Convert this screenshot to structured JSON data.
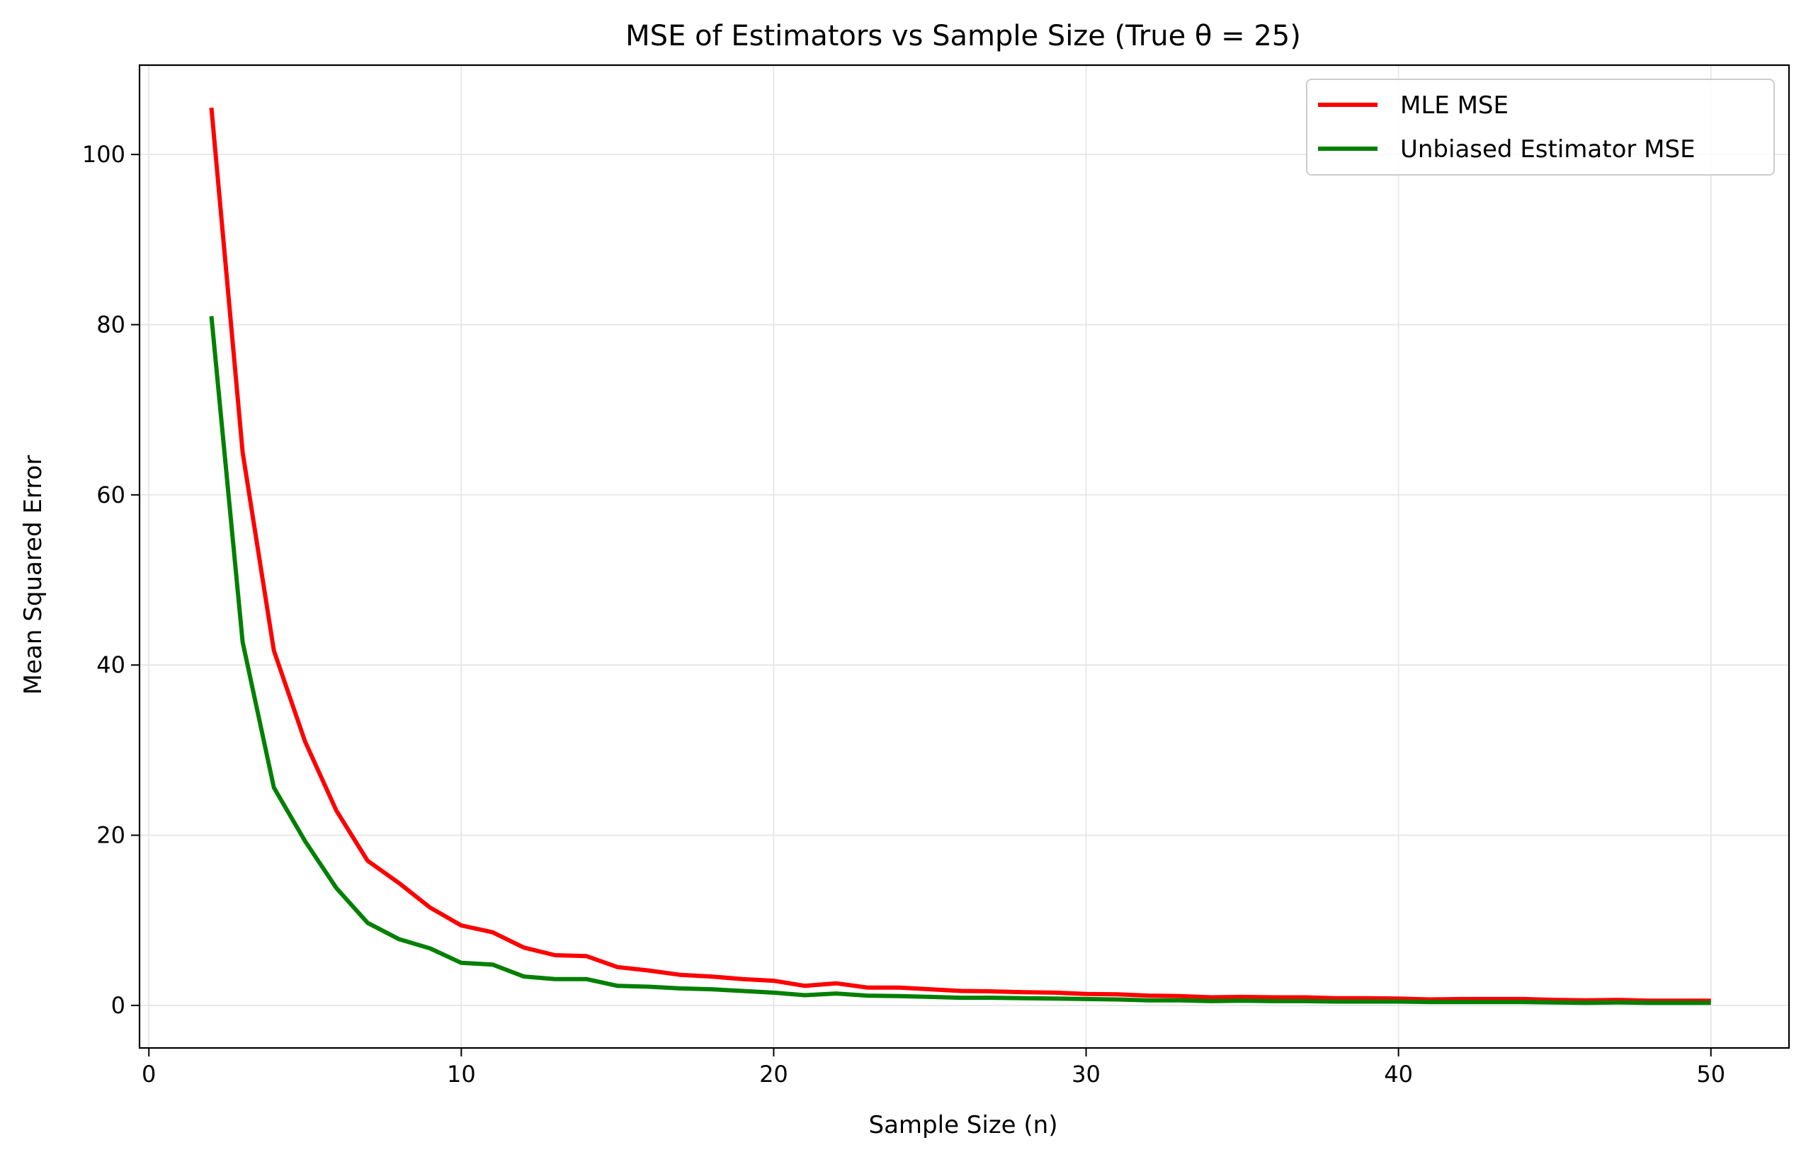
{
  "chart_data": {
    "type": "line",
    "title": "MSE of Estimators vs Sample Size (True θ = 25)",
    "xlabel": "Sample Size (n)",
    "ylabel": "Mean Squared Error",
    "xlim": [
      -0.3,
      52.5
    ],
    "ylim": [
      -5,
      110.5
    ],
    "xticks": [
      0,
      10,
      20,
      30,
      40,
      50
    ],
    "yticks": [
      0,
      20,
      40,
      60,
      80,
      100
    ],
    "grid": true,
    "legend_position": "top-right",
    "x": [
      2,
      3,
      4,
      5,
      6,
      7,
      8,
      9,
      10,
      11,
      12,
      13,
      14,
      15,
      16,
      17,
      18,
      19,
      20,
      21,
      22,
      23,
      24,
      25,
      26,
      27,
      28,
      29,
      30,
      31,
      32,
      33,
      34,
      35,
      36,
      37,
      38,
      39,
      40,
      41,
      42,
      43,
      44,
      45,
      46,
      47,
      48,
      49,
      50
    ],
    "series": [
      {
        "name": "MLE MSE",
        "color": "#ff0000",
        "values": [
          105.5,
          65.0,
          41.7,
          31.0,
          22.9,
          17.0,
          14.4,
          11.5,
          9.4,
          8.6,
          6.8,
          5.9,
          5.8,
          4.5,
          4.1,
          3.6,
          3.4,
          3.1,
          2.9,
          2.3,
          2.6,
          2.1,
          2.1,
          1.9,
          1.7,
          1.65,
          1.55,
          1.5,
          1.35,
          1.3,
          1.15,
          1.1,
          0.95,
          1.0,
          0.95,
          0.95,
          0.85,
          0.85,
          0.8,
          0.7,
          0.75,
          0.75,
          0.75,
          0.65,
          0.6,
          0.65,
          0.55,
          0.55,
          0.55
        ]
      },
      {
        "name": "Unbiased Estimator MSE",
        "color": "#008000",
        "values": [
          81.0,
          42.7,
          25.6,
          19.3,
          13.8,
          9.7,
          7.8,
          6.7,
          5.0,
          4.8,
          3.4,
          3.1,
          3.1,
          2.3,
          2.2,
          2.0,
          1.9,
          1.7,
          1.5,
          1.2,
          1.4,
          1.15,
          1.1,
          1.0,
          0.9,
          0.9,
          0.85,
          0.8,
          0.75,
          0.7,
          0.6,
          0.6,
          0.5,
          0.55,
          0.5,
          0.5,
          0.45,
          0.45,
          0.45,
          0.4,
          0.4,
          0.4,
          0.4,
          0.35,
          0.3,
          0.35,
          0.3,
          0.3,
          0.3
        ]
      }
    ]
  }
}
